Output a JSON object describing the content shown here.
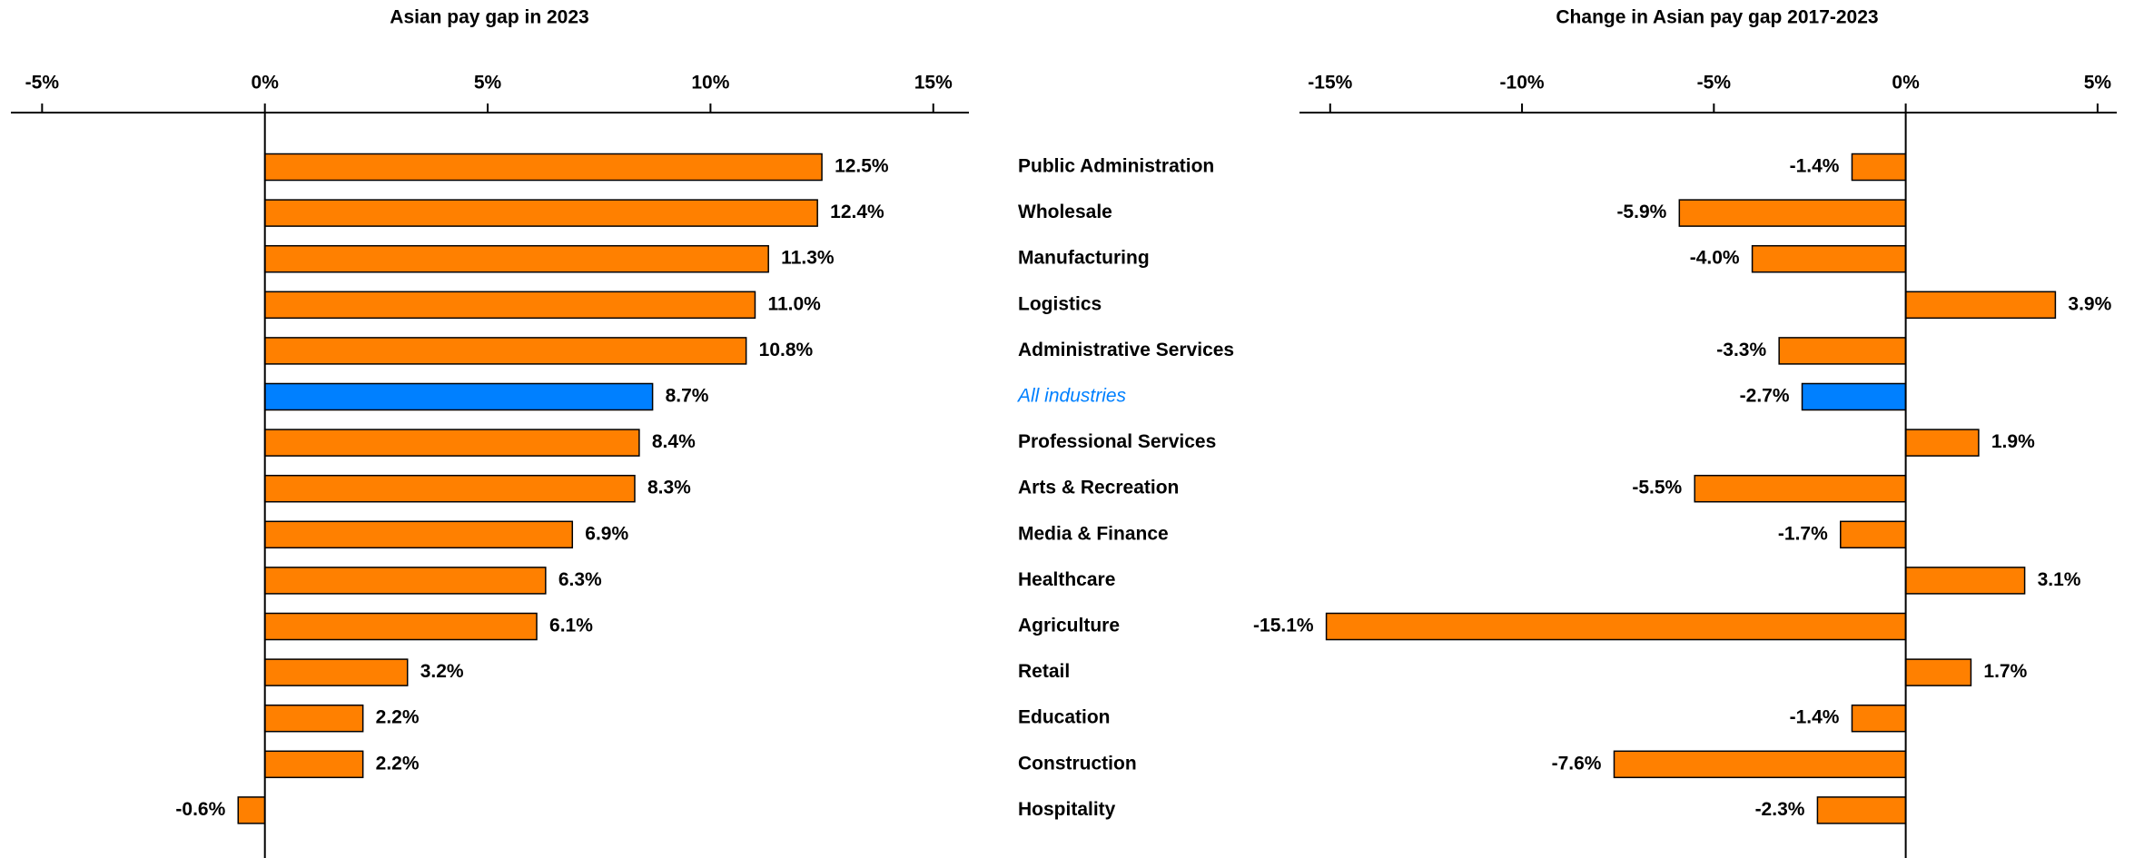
{
  "chart_data": [
    {
      "type": "hbar",
      "title": "Asian pay gap in 2023",
      "values": [
        12.5,
        12.4,
        11.3,
        11.0,
        10.8,
        8.7,
        8.4,
        8.3,
        6.9,
        6.3,
        6.1,
        3.2,
        2.2,
        2.2,
        -0.6
      ],
      "value_labels": [
        "12.5%",
        "12.4%",
        "11.3%",
        "11.0%",
        "10.8%",
        "8.7%",
        "8.4%",
        "8.3%",
        "6.9%",
        "6.3%",
        "6.1%",
        "3.2%",
        "2.2%",
        "2.2%",
        "-0.6%"
      ],
      "color": "#ff8000",
      "colors": [
        "#ff8000",
        "#ff8000",
        "#ff8000",
        "#ff8000",
        "#ff8000",
        "#0080ff",
        "#ff8000",
        "#ff8000",
        "#ff8000",
        "#ff8000",
        "#ff8000",
        "#ff8000",
        "#ff8000",
        "#ff8000",
        "#ff8000"
      ],
      "xlim": [
        -5.7,
        15.8
      ],
      "xticks": [
        {
          "value": -5,
          "label": "-5%"
        },
        {
          "value": 0,
          "label": "0%"
        },
        {
          "value": 5,
          "label": "5%"
        },
        {
          "value": 10,
          "label": "10%"
        },
        {
          "value": 15,
          "label": "15%"
        }
      ]
    },
    {
      "type": "hbar",
      "title": "Change in Asian pay gap 2017-2023",
      "categories": [
        "Public Administration",
        "Wholesale",
        "Manufacturing",
        "Logistics",
        "Administrative Services",
        "All industries",
        "Professional Services",
        "Arts & Recreation",
        "Media & Finance",
        "Healthcare",
        "Agriculture",
        "Retail",
        "Education",
        "Construction",
        "Hospitality"
      ],
      "values": [
        -1.4,
        -5.9,
        -4.0,
        3.9,
        -3.3,
        -2.7,
        1.9,
        -5.5,
        -1.7,
        3.1,
        -15.1,
        1.7,
        -1.4,
        -7.6,
        -2.3
      ],
      "value_labels": [
        "-1.4%",
        "-5.9%",
        "-4.0%",
        "3.9%",
        "-3.3%",
        "-2.7%",
        "1.9%",
        "-5.5%",
        "-1.7%",
        "3.1%",
        "-15.1%",
        "1.7%",
        "-1.4%",
        "-7.6%",
        "-2.3%"
      ],
      "color": "#ff8000",
      "colors": [
        "#ff8000",
        "#ff8000",
        "#ff8000",
        "#ff8000",
        "#ff8000",
        "#0080ff",
        "#ff8000",
        "#ff8000",
        "#ff8000",
        "#ff8000",
        "#ff8000",
        "#ff8000",
        "#ff8000",
        "#ff8000",
        "#ff8000"
      ],
      "xlim": [
        -15.8,
        5.5
      ],
      "xticks": [
        {
          "value": -15,
          "label": "-15%"
        },
        {
          "value": -10,
          "label": "-10%"
        },
        {
          "value": -5,
          "label": "-5%"
        },
        {
          "value": 0,
          "label": "0%"
        },
        {
          "value": 5,
          "label": "5%"
        }
      ]
    }
  ]
}
